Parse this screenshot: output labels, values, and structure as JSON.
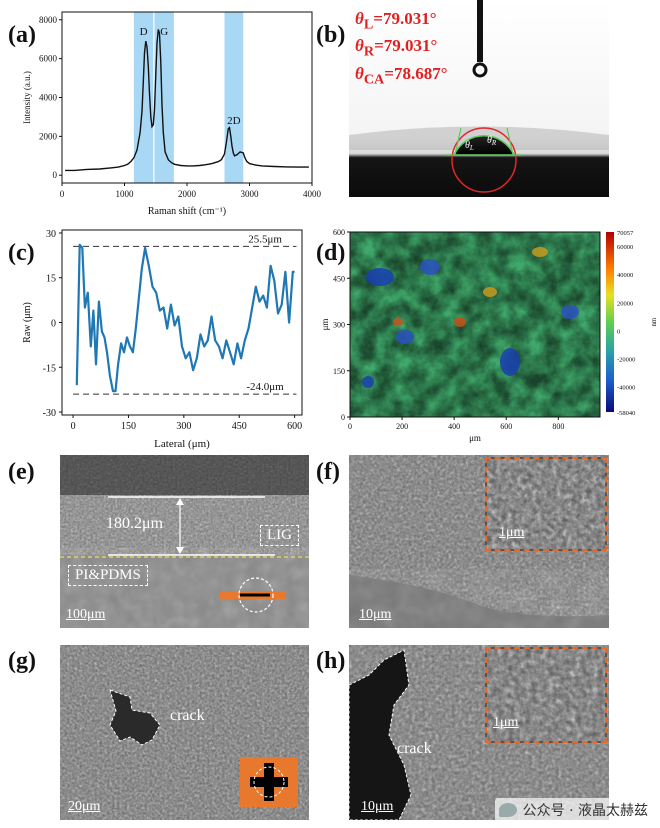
{
  "panels": {
    "a": {
      "letter": "(a)"
    },
    "b": {
      "letter": "(b)"
    },
    "c": {
      "letter": "(c)"
    },
    "d": {
      "letter": "(d)"
    },
    "e": {
      "letter": "(e)"
    },
    "f": {
      "letter": "(f)"
    },
    "g": {
      "letter": "(g)"
    },
    "h": {
      "letter": "(h)"
    }
  },
  "chart_data": [
    {
      "id": "raman",
      "type": "line",
      "title": "",
      "xlabel": "Raman shift (cm⁻¹)",
      "ylabel": "Intensity (a.u.)",
      "xlim": [
        0,
        4000
      ],
      "ylim": [
        -400,
        8400
      ],
      "xticks": [
        "0",
        "1000",
        "2000",
        "3000",
        "4000"
      ],
      "yticks": [
        "0",
        "2000",
        "4000",
        "6000",
        "8000"
      ],
      "x": [
        50,
        200,
        400,
        600,
        800,
        900,
        1000,
        1050,
        1100,
        1150,
        1200,
        1250,
        1280,
        1300,
        1320,
        1340,
        1360,
        1380,
        1400,
        1420,
        1440,
        1460,
        1480,
        1500,
        1520,
        1540,
        1560,
        1580,
        1600,
        1620,
        1650,
        1700,
        1750,
        1800,
        1900,
        2000,
        2100,
        2200,
        2300,
        2400,
        2500,
        2550,
        2600,
        2630,
        2660,
        2680,
        2700,
        2720,
        2740,
        2760,
        2800,
        2850,
        2900,
        2920,
        2940,
        2960,
        3000,
        3100,
        3200,
        3400,
        3600,
        3800,
        3950
      ],
      "y": [
        250,
        250,
        300,
        320,
        380,
        420,
        500,
        560,
        700,
        900,
        1300,
        2200,
        3300,
        4800,
        6300,
        6900,
        6600,
        5600,
        4200,
        3000,
        2500,
        2600,
        3400,
        5200,
        6800,
        7500,
        7300,
        5800,
        3600,
        2200,
        1200,
        800,
        650,
        560,
        500,
        480,
        480,
        500,
        540,
        600,
        700,
        800,
        1100,
        1700,
        2400,
        2450,
        2000,
        1500,
        1150,
        1000,
        1050,
        1200,
        1150,
        950,
        800,
        700,
        600,
        520,
        480,
        450,
        430,
        420,
        420
      ],
      "bands": [
        {
          "label": "D",
          "from": 1150,
          "to": 1460
        },
        {
          "label": "G",
          "from": 1480,
          "to": 1790
        },
        {
          "label": "2D",
          "from": 2600,
          "to": 2900
        }
      ]
    },
    {
      "id": "profile",
      "type": "line",
      "title": "",
      "xlabel": "Lateral (μm)",
      "ylabel": "Raw (μm)",
      "xlim": [
        -30,
        620
      ],
      "ylim": [
        -31,
        31
      ],
      "xticks": [
        "0",
        "150",
        "300",
        "450",
        "600"
      ],
      "yticks": [
        "30",
        "15",
        "0",
        "-15",
        "-30"
      ],
      "x": [
        10,
        18,
        25,
        32,
        40,
        48,
        55,
        62,
        70,
        78,
        85,
        92,
        100,
        108,
        115,
        122,
        130,
        138,
        146,
        154,
        162,
        170,
        178,
        186,
        195,
        205,
        215,
        225,
        235,
        245,
        255,
        265,
        275,
        285,
        295,
        305,
        315,
        325,
        335,
        345,
        355,
        365,
        375,
        385,
        395,
        405,
        415,
        425,
        435,
        445,
        455,
        465,
        475,
        485,
        495,
        505,
        515,
        525,
        535,
        545,
        555,
        565,
        575,
        585,
        595,
        600
      ],
      "y": [
        -21,
        26,
        25,
        5,
        10,
        -8,
        4,
        -14,
        7,
        -3,
        -5,
        -10,
        -18,
        -23,
        -23,
        -14,
        -7,
        -10,
        -5,
        -8,
        -10,
        -2,
        8,
        18,
        25,
        19,
        12,
        10,
        4,
        5,
        -2,
        6,
        -1,
        2,
        -8,
        -12,
        -10,
        -16,
        -12,
        -4,
        -8,
        -6,
        2,
        -6,
        -8,
        -12,
        -6,
        -10,
        -14,
        -7,
        -12,
        -6,
        -2,
        5,
        12,
        7,
        9,
        5,
        19,
        14,
        3,
        6,
        17,
        0,
        17,
        17
      ],
      "reference_lines": [
        {
          "value": 25.5,
          "label": "25.5μm"
        },
        {
          "value": -24.0,
          "label": "-24.0μm"
        }
      ]
    },
    {
      "id": "heightmap",
      "type": "heatmap",
      "xlabel": "μm",
      "ylabel": "μm",
      "xlim": [
        0,
        960
      ],
      "ylim": [
        0,
        600
      ],
      "xticks": [
        "0",
        "200",
        "400",
        "600",
        "800"
      ],
      "yticks": [
        "600",
        "450",
        "300",
        "150",
        "0"
      ],
      "colorbar": {
        "label": "nm",
        "ticks": [
          "70057",
          "60000",
          "40000",
          "20000",
          "0",
          "-20000",
          "-40000",
          "-58040"
        ],
        "max": 70057,
        "min": -58040
      }
    }
  ],
  "contact_angle": {
    "theta_l_label": "θ",
    "theta_l_sub": "L",
    "theta_l_value": "=79.031°",
    "theta_r_label": "θ",
    "theta_r_sub": "R",
    "theta_r_value": "=79.031°",
    "theta_ca_label": "θ",
    "theta_ca_sub": "CA",
    "theta_ca_value": "=78.687°",
    "drop_left": "θ",
    "drop_left_sub": "L",
    "drop_right": "θ",
    "drop_right_sub": "R"
  },
  "sem": {
    "e": {
      "thickness": "180.2μm",
      "layer_top": "LIG",
      "layer_bottom": "PI&PDMS",
      "scale": "100μm"
    },
    "f": {
      "scale": "10μm",
      "inset_scale": "1μm"
    },
    "g": {
      "crack": "crack",
      "scale": "20μm"
    },
    "h": {
      "crack": "crack",
      "scale": "10μm",
      "inset_scale": "1μm"
    }
  },
  "watermark": {
    "text": "公众号 · 液晶太赫兹"
  },
  "colors": {
    "line_a": "#111111",
    "band": "#a8d8f4",
    "line_c": "#1f77b4",
    "text_red": "#e02020",
    "inset_border": "#e26a2c",
    "orange": "#e8782d"
  }
}
